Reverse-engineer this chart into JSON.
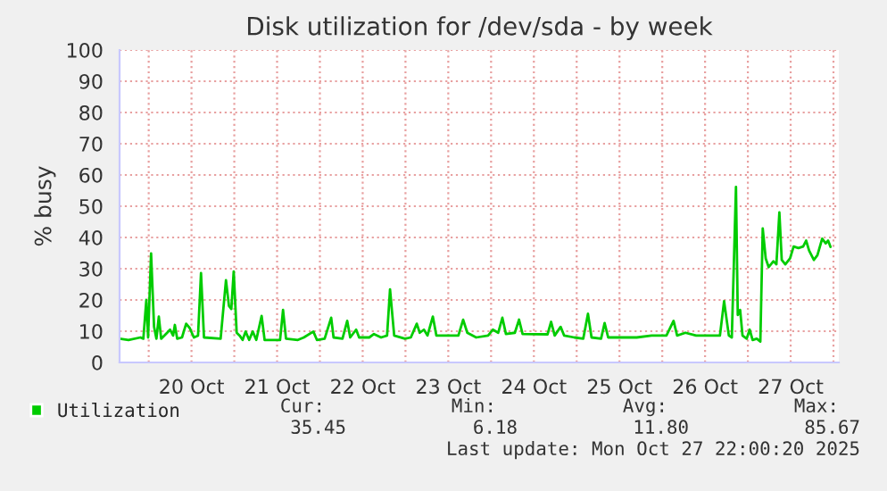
{
  "chart_data": {
    "type": "line",
    "title": "Disk utilization for /dev/sda - by week",
    "ylabel": "% busy",
    "ylim": [
      0,
      100
    ],
    "yticks": [
      0,
      10,
      20,
      30,
      40,
      50,
      60,
      70,
      80,
      90,
      100
    ],
    "xlim": [
      "2025-10-19T15:50",
      "2025-10-28T01:30"
    ],
    "xticks": [
      {
        "value": "2025-10-20T00:00",
        "label": null
      },
      {
        "value": "2025-10-20T12:00",
        "label": "20 Oct"
      },
      {
        "value": "2025-10-21T00:00",
        "label": null
      },
      {
        "value": "2025-10-21T12:00",
        "label": "21 Oct"
      },
      {
        "value": "2025-10-22T00:00",
        "label": null
      },
      {
        "value": "2025-10-22T12:00",
        "label": "22 Oct"
      },
      {
        "value": "2025-10-23T00:00",
        "label": null
      },
      {
        "value": "2025-10-23T12:00",
        "label": "23 Oct"
      },
      {
        "value": "2025-10-24T00:00",
        "label": null
      },
      {
        "value": "2025-10-24T12:00",
        "label": "24 Oct"
      },
      {
        "value": "2025-10-25T00:00",
        "label": null
      },
      {
        "value": "2025-10-25T12:00",
        "label": "25 Oct"
      },
      {
        "value": "2025-10-26T00:00",
        "label": null
      },
      {
        "value": "2025-10-26T12:00",
        "label": "26 Oct"
      },
      {
        "value": "2025-10-27T00:00",
        "label": null
      },
      {
        "value": "2025-10-27T12:00",
        "label": "27 Oct"
      },
      {
        "value": "2025-10-28T00:00",
        "label": null
      }
    ],
    "grid": true,
    "legend": "bottom left",
    "x": [
      "2025-10-19T15:50",
      "2025-10-19T18:20",
      "2025-10-19T21:40",
      "2025-10-19T22:30",
      "2025-10-19T23:20",
      "2025-10-19T23:50",
      "2025-10-20T00:40",
      "2025-10-20T01:30",
      "2025-10-20T02:10",
      "2025-10-20T02:50",
      "2025-10-20T03:30",
      "2025-10-20T05:10",
      "2025-10-20T06:00",
      "2025-10-20T06:50",
      "2025-10-20T07:20",
      "2025-10-20T08:00",
      "2025-10-20T09:20",
      "2025-10-20T10:30",
      "2025-10-20T11:30",
      "2025-10-20T12:40",
      "2025-10-20T13:50",
      "2025-10-20T14:40",
      "2025-10-20T15:30",
      "2025-10-20T20:10",
      "2025-10-20T21:40",
      "2025-10-20T22:30",
      "2025-10-20T23:10",
      "2025-10-20T23:50",
      "2025-10-21T00:40",
      "2025-10-21T01:30",
      "2025-10-21T02:20",
      "2025-10-21T03:10",
      "2025-10-21T04:10",
      "2025-10-21T05:10",
      "2025-10-21T06:10",
      "2025-10-21T07:40",
      "2025-10-21T08:30",
      "2025-10-21T12:50",
      "2025-10-21T13:40",
      "2025-10-21T14:30",
      "2025-10-21T17:50",
      "2025-10-21T19:30",
      "2025-10-21T22:10",
      "2025-10-21T23:10",
      "2025-10-22T01:20",
      "2025-10-22T03:10",
      "2025-10-22T03:50",
      "2025-10-22T06:20",
      "2025-10-22T07:40",
      "2025-10-22T08:30",
      "2025-10-22T10:10",
      "2025-10-22T11:00",
      "2025-10-22T13:50",
      "2025-10-22T15:10",
      "2025-10-22T17:10",
      "2025-10-22T18:50",
      "2025-10-22T19:40",
      "2025-10-22T20:50",
      "2025-10-22T23:50",
      "2025-10-23T01:30",
      "2025-10-23T03:10",
      "2025-10-23T04:00",
      "2025-10-23T05:10",
      "2025-10-23T06:10",
      "2025-10-23T07:40",
      "2025-10-23T08:40",
      "2025-10-23T11:10",
      "2025-10-23T14:50",
      "2025-10-23T16:10",
      "2025-10-23T17:20",
      "2025-10-23T19:50",
      "2025-10-23T23:10",
      "2025-10-24T00:30",
      "2025-10-24T02:00",
      "2025-10-24T03:10",
      "2025-10-24T04:10",
      "2025-10-24T06:40",
      "2025-10-24T07:50",
      "2025-10-24T08:50",
      "2025-10-24T15:50",
      "2025-10-24T16:50",
      "2025-10-24T17:50",
      "2025-10-24T19:30",
      "2025-10-24T20:30",
      "2025-10-24T23:20",
      "2025-10-25T01:50",
      "2025-10-25T03:10",
      "2025-10-25T04:10",
      "2025-10-25T06:50",
      "2025-10-25T07:50",
      "2025-10-25T08:50",
      "2025-10-25T16:50",
      "2025-10-25T21:00",
      "2025-10-26T01:10",
      "2025-10-26T03:10",
      "2025-10-26T04:10",
      "2025-10-26T06:30",
      "2025-10-26T09:30",
      "2025-10-26T12:50",
      "2025-10-26T16:10",
      "2025-10-26T17:20",
      "2025-10-26T18:40",
      "2025-10-26T19:30",
      "2025-10-26T20:40",
      "2025-10-26T21:10",
      "2025-10-26T21:50",
      "2025-10-26T22:30",
      "2025-10-26T23:40",
      "2025-10-27T00:30",
      "2025-10-27T01:20",
      "2025-10-27T02:30",
      "2025-10-27T03:30",
      "2025-10-27T04:10",
      "2025-10-27T05:00",
      "2025-10-27T05:50",
      "2025-10-27T07:10",
      "2025-10-27T08:00",
      "2025-10-27T08:50",
      "2025-10-27T09:30",
      "2025-10-27T10:30",
      "2025-10-27T11:50",
      "2025-10-27T12:50",
      "2025-10-27T14:10",
      "2025-10-27T15:30",
      "2025-10-27T16:20",
      "2025-10-27T17:10",
      "2025-10-27T18:30",
      "2025-10-27T19:30",
      "2025-10-27T20:50",
      "2025-10-27T21:50",
      "2025-10-27T22:30",
      "2025-10-27T23:10"
    ],
    "series": [
      {
        "name": "Utilization",
        "color": "#00cc00",
        "values": [
          7.6,
          7.2,
          8.0,
          7.6,
          20.0,
          8.0,
          34.9,
          11.4,
          7.6,
          14.7,
          7.6,
          9.5,
          10.5,
          8.6,
          12.0,
          7.6,
          8.0,
          12.4,
          11.0,
          8.0,
          8.6,
          28.6,
          8.0,
          7.6,
          26.3,
          18.1,
          17.1,
          29.1,
          9.5,
          8.6,
          7.2,
          9.9,
          7.2,
          9.9,
          7.2,
          14.9,
          7.2,
          7.2,
          16.8,
          7.6,
          7.2,
          8.0,
          9.9,
          7.2,
          7.6,
          14.3,
          8.0,
          7.6,
          13.3,
          8.0,
          10.5,
          8.0,
          8.0,
          9.1,
          8.0,
          8.6,
          23.4,
          8.6,
          7.6,
          8.0,
          12.4,
          9.5,
          10.5,
          8.6,
          14.7,
          8.6,
          8.6,
          8.6,
          13.7,
          9.5,
          8.0,
          8.6,
          10.5,
          9.5,
          14.3,
          9.1,
          9.5,
          13.7,
          9.1,
          9.0,
          13.0,
          8.6,
          11.4,
          8.6,
          8.0,
          7.6,
          15.6,
          8.0,
          7.6,
          12.6,
          8.0,
          8.0,
          8.6,
          8.6,
          13.3,
          8.6,
          9.5,
          8.6,
          8.6,
          8.6,
          19.6,
          8.6,
          8.0,
          56.2,
          15.2,
          16.8,
          8.6,
          7.6,
          10.5,
          7.2,
          7.6,
          6.7,
          42.9,
          33.3,
          30.5,
          32.4,
          31.4,
          48.0,
          32.8,
          31.4,
          33.3,
          37.1,
          36.6,
          37.1,
          39.0,
          35.8,
          32.8,
          34.3,
          39.6,
          38.1,
          39.0,
          37.0
        ]
      }
    ],
    "annotations": [
      "Cur:",
      "Min:",
      "Avg:",
      "Max:",
      "35.45",
      "6.18",
      "11.80",
      "85.67",
      "Last update: Mon Oct 27 22:00:20 2025"
    ]
  }
}
